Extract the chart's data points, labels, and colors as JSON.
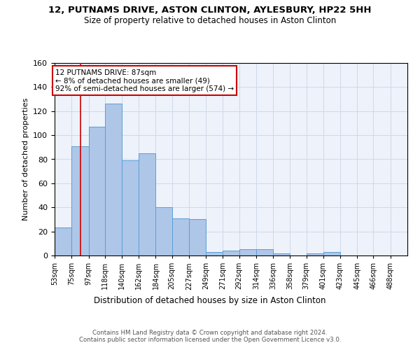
{
  "title_line1": "12, PUTNAMS DRIVE, ASTON CLINTON, AYLESBURY, HP22 5HH",
  "title_line2": "Size of property relative to detached houses in Aston Clinton",
  "xlabel": "Distribution of detached houses by size in Aston Clinton",
  "ylabel": "Number of detached properties",
  "bin_labels": [
    "53sqm",
    "75sqm",
    "97sqm",
    "118sqm",
    "140sqm",
    "162sqm",
    "184sqm",
    "205sqm",
    "227sqm",
    "249sqm",
    "271sqm",
    "292sqm",
    "314sqm",
    "336sqm",
    "358sqm",
    "379sqm",
    "401sqm",
    "423sqm",
    "445sqm",
    "466sqm",
    "488sqm"
  ],
  "bar_heights": [
    23,
    91,
    107,
    126,
    79,
    85,
    40,
    31,
    30,
    3,
    4,
    5,
    5,
    2,
    0,
    2,
    3,
    0,
    0,
    0,
    0
  ],
  "bar_color": "#aec6e8",
  "bar_edgecolor": "#5a9fd4",
  "grid_color": "#d0d8e8",
  "background_color": "#eef2fa",
  "vline_x": 87,
  "vline_color": "#cc0000",
  "annotation_text": "12 PUTNAMS DRIVE: 87sqm\n← 8% of detached houses are smaller (49)\n92% of semi-detached houses are larger (574) →",
  "annotation_box_color": "white",
  "annotation_box_edgecolor": "#cc0000",
  "footnote": "Contains HM Land Registry data © Crown copyright and database right 2024.\nContains public sector information licensed under the Open Government Licence v3.0.",
  "ylim": [
    0,
    160
  ],
  "bin_edges_sqm": [
    53,
    75,
    97,
    118,
    140,
    162,
    184,
    205,
    227,
    249,
    271,
    292,
    314,
    336,
    358,
    379,
    401,
    423,
    445,
    466,
    488
  ],
  "xlim_end": 510
}
